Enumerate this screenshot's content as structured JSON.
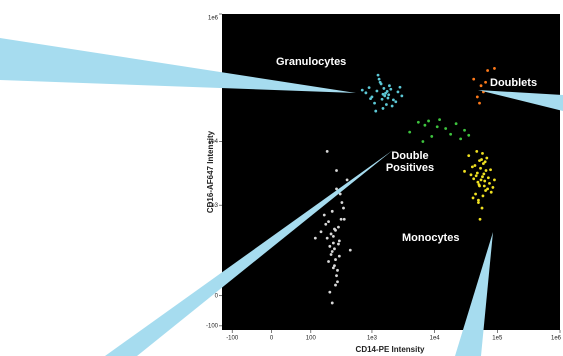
{
  "chart_data": {
    "type": "scatter",
    "xlabel": "CD14-PE Intensity",
    "ylabel": "CD16-AF647 Intensity",
    "xscale": "arcsinh",
    "yscale": "arcsinh",
    "xlim": [
      -150,
      1000000
    ],
    "ylim": [
      -120,
      1000000
    ],
    "xticks": [
      {
        "value": -100,
        "label": "-100"
      },
      0,
      100,
      {
        "value": 1000,
        "label": "1e3"
      },
      {
        "value": 10000,
        "label": "1e4"
      },
      {
        "value": 100000,
        "label": "1e5"
      },
      {
        "value": 1000000,
        "label": "1e6"
      }
    ],
    "yticks": [
      {
        "value": -100,
        "label": "-100"
      },
      0,
      {
        "value": 1000,
        "label": "1e3"
      },
      {
        "value": 10000,
        "label": "1e4"
      },
      {
        "value": 100000,
        "label": "1e5"
      },
      {
        "value": 1000000,
        "label": "1e6"
      }
    ],
    "series": [
      {
        "name": "Granulocytes",
        "color": "#5cc8d6",
        "x": [
          1500,
          1200,
          1800,
          900,
          2200,
          1400,
          1600,
          1100,
          2600,
          1300,
          1700,
          2000,
          800,
          1500,
          1900,
          1000,
          2400,
          1250,
          1650,
          3000,
          700,
          1450,
          1550,
          2100,
          1350,
          1750,
          950,
          2800,
          1150,
          1850
        ],
        "y": [
          55000,
          62000,
          48000,
          70000,
          45000,
          80000,
          52000,
          40000,
          60000,
          95000,
          38000,
          66000,
          58000,
          33000,
          75000,
          50000,
          42000,
          110000,
          57000,
          52000,
          64000,
          46000,
          68000,
          36000,
          85000,
          61000,
          47000,
          71000,
          30000,
          54000
        ]
      },
      {
        "name": "Doublets",
        "color": "#ff7a1a",
        "x": [
          42000,
          55000,
          60000,
          48000,
          70000,
          52000,
          90000,
          65000
        ],
        "y": [
          95000,
          75000,
          60000,
          50000,
          130000,
          40000,
          140000,
          85000
        ]
      },
      {
        "name": "Double Positives",
        "color": "#3ec43e",
        "x": [
          4000,
          5500,
          7000,
          9000,
          12000,
          15000,
          18000,
          22000,
          26000,
          30000,
          6500,
          11000,
          35000,
          8000
        ],
        "y": [
          14000,
          20000,
          18000,
          12000,
          22000,
          16000,
          13000,
          19000,
          11000,
          15000,
          10000,
          17000,
          12500,
          21000
        ]
      },
      {
        "name": "Monocytes",
        "color": "#f0e020",
        "x": [
          55000,
          48000,
          62000,
          40000,
          70000,
          52000,
          58000,
          45000,
          66000,
          35000,
          75000,
          50000,
          60000,
          42000,
          80000,
          54000,
          47000,
          63000,
          57000,
          38000,
          68000,
          51000,
          59000,
          44000,
          72000,
          30000,
          85000,
          53000,
          61000,
          49000,
          56000,
          65000,
          46000,
          78000,
          41000,
          58000,
          52000,
          64000,
          50000,
          90000
        ],
        "y": [
          2500,
          3200,
          2000,
          4000,
          1800,
          5000,
          2800,
          1500,
          3500,
          6000,
          2200,
          1200,
          4500,
          2600,
          1600,
          3800,
          7000,
          2400,
          900,
          3000,
          5500,
          2100,
          1400,
          4200,
          2700,
          3400,
          1900,
          600,
          3100,
          2300,
          5200,
          1700,
          2900,
          3600,
          1300,
          6500,
          2000,
          4800,
          1100,
          2500
        ]
      },
      {
        "color": "#d8d8d8",
        "x": [
          250,
          220,
          300,
          180,
          280,
          240,
          320,
          200,
          260,
          350,
          230,
          270,
          190,
          310,
          210,
          290,
          250,
          400,
          170,
          260,
          240,
          330,
          220,
          280,
          200,
          300,
          150,
          260,
          230,
          270,
          450,
          210,
          250,
          290,
          190,
          240,
          360,
          270,
          230,
          120
        ],
        "y": [
          200,
          350,
          150,
          500,
          80,
          250,
          600,
          120,
          400,
          900,
          180,
          60,
          300,
          1500,
          220,
          450,
          100,
          2500,
          700,
          30,
          320,
          1100,
          160,
          40,
          550,
          270,
          380,
          130,
          800,
          3500,
          190,
          10,
          420,
          240,
          7000,
          90,
          600,
          1800,
          -20,
          300
        ]
      }
    ]
  }
}
